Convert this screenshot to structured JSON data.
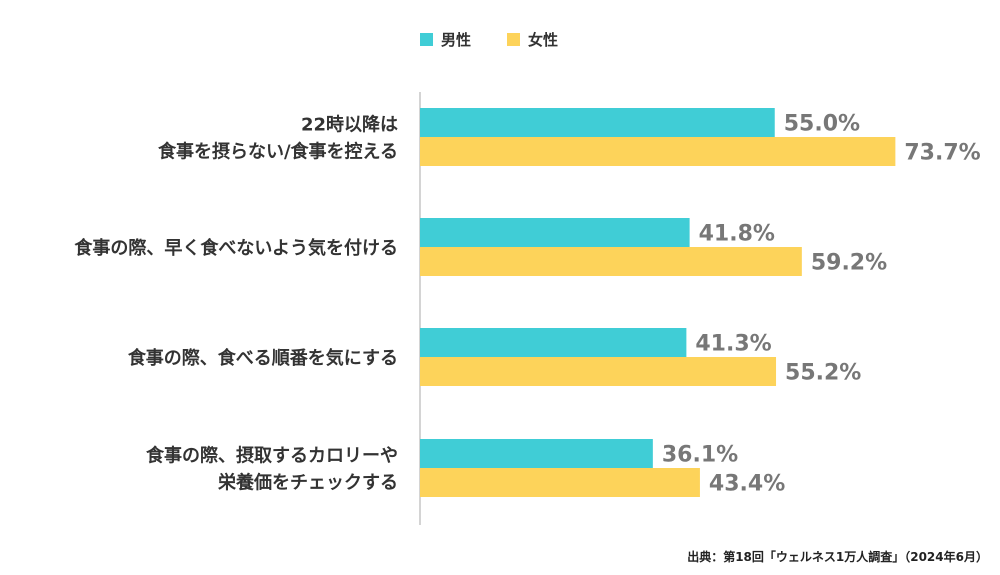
{
  "legend": {
    "male": "男性",
    "female": "女性"
  },
  "colors": {
    "male": "#40CDD6",
    "female": "#FDD35A",
    "value_text": "#777777",
    "axis": "#aaaaaa"
  },
  "source": "出典：第18回「ウェルネス1万人調査」（2024年6月）",
  "chart_data": {
    "type": "bar",
    "orientation": "horizontal",
    "categories": [
      [
        "22時以降は",
        "食事を摂らない/食事を控える"
      ],
      [
        "食事の際、早く食べないよう気を付ける"
      ],
      [
        "食事の際、食べる順番を気にする"
      ],
      [
        "食事の際、摂取するカロリーや",
        "栄養価をチェックする"
      ]
    ],
    "series": [
      {
        "name": "男性",
        "values": [
          55.0,
          41.8,
          41.3,
          36.1
        ],
        "labels": [
          "55.0%",
          "41.8%",
          "41.3%",
          "36.1%"
        ]
      },
      {
        "name": "女性",
        "values": [
          73.7,
          59.2,
          55.2,
          43.4
        ],
        "labels": [
          "73.7%",
          "59.2%",
          "55.2%",
          "43.4%"
        ]
      }
    ],
    "xlim": [
      0,
      100
    ],
    "grid": false,
    "legend_position": "top"
  }
}
